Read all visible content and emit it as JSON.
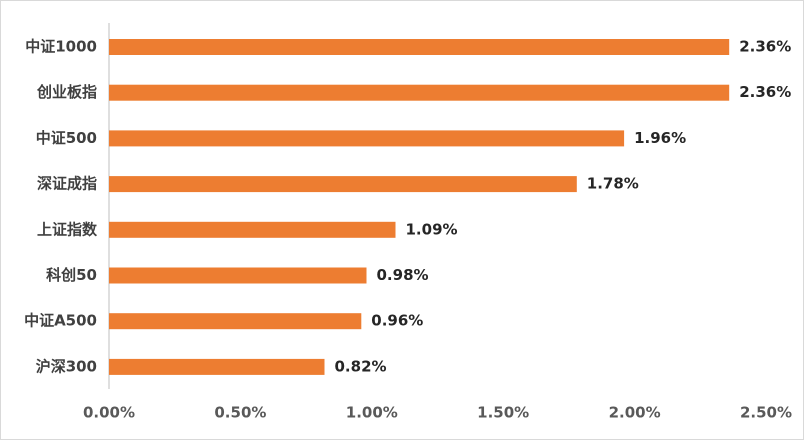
{
  "chart_data": {
    "type": "bar",
    "orientation": "horizontal",
    "title": "",
    "xlabel": "",
    "ylabel": "",
    "categories": [
      "中证1000",
      "创业板指",
      "中证500",
      "深证成指",
      "上证指数",
      "科创50",
      "中证A500",
      "沪深300"
    ],
    "values": [
      2.36,
      2.36,
      1.96,
      1.78,
      1.09,
      0.98,
      0.96,
      0.82
    ],
    "value_labels": [
      "2.36%",
      "2.36%",
      "1.96%",
      "1.78%",
      "1.09%",
      "0.98%",
      "0.96%",
      "0.82%"
    ],
    "xlim": [
      0,
      2.5
    ],
    "x_ticks": [
      0,
      0.5,
      1.0,
      1.5,
      2.0,
      2.5
    ],
    "x_tick_labels": [
      "0.00%",
      "0.50%",
      "1.00%",
      "1.50%",
      "2.00%",
      "2.50%"
    ],
    "unit": "%",
    "grid": false,
    "legend": "none",
    "bar_color": "#ED7D31"
  }
}
